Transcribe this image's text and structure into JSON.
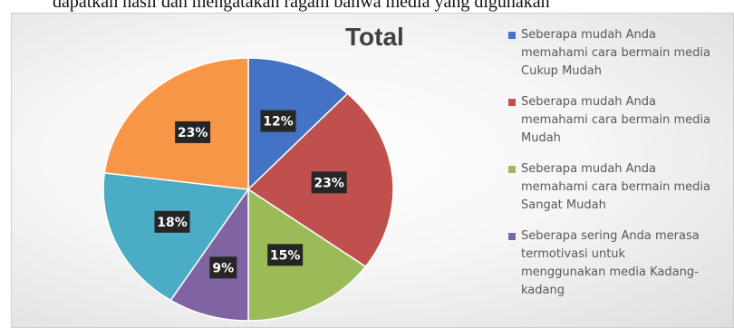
{
  "caption_fragment": "dapatkan hasil dan mengatakan ragam bahwa media yang digunakan",
  "chart_data": {
    "type": "pie",
    "title": "Total",
    "start_angle_deg": 0,
    "direction": "clockwise",
    "legend_position": "right",
    "slices": [
      {
        "label": "Seberapa mudah Anda memahami cara bermain media Cukup Mudah",
        "value": 12,
        "display": "12%",
        "color": "#4472C4"
      },
      {
        "label": "Seberapa mudah Anda memahami cara bermain media Mudah",
        "value": 23,
        "display": "23%",
        "color": "#C0504D"
      },
      {
        "label": "Seberapa mudah Anda memahami cara bermain media Sangat Mudah",
        "value": 15,
        "display": "15%",
        "color": "#9BBB59"
      },
      {
        "label": "Seberapa sering Anda merasa termotivasi untuk menggunakan media Kadang-kadang",
        "value": 9,
        "display": "9%",
        "color": "#8064A2"
      },
      {
        "label": "",
        "value": 18,
        "display": "18%",
        "color": "#4BACC6"
      },
      {
        "label": "",
        "value": 23,
        "display": "23%",
        "color": "#F79646"
      }
    ]
  },
  "legend": {
    "items": [
      {
        "text": "Seberapa mudah Anda\nmemahami cara bermain media\nCukup Mudah",
        "color": "#4472C4"
      },
      {
        "text": "Seberapa mudah Anda\nmemahami cara bermain media\nMudah",
        "color": "#C0504D"
      },
      {
        "text": "Seberapa mudah Anda\nmemahami cara bermain media\nSangat Mudah",
        "color": "#9BBB59"
      },
      {
        "text": "Seberapa sering Anda merasa\ntermotivasi untuk\nmenggunakan media Kadang-\nkadang",
        "color": "#8064A2"
      }
    ]
  }
}
